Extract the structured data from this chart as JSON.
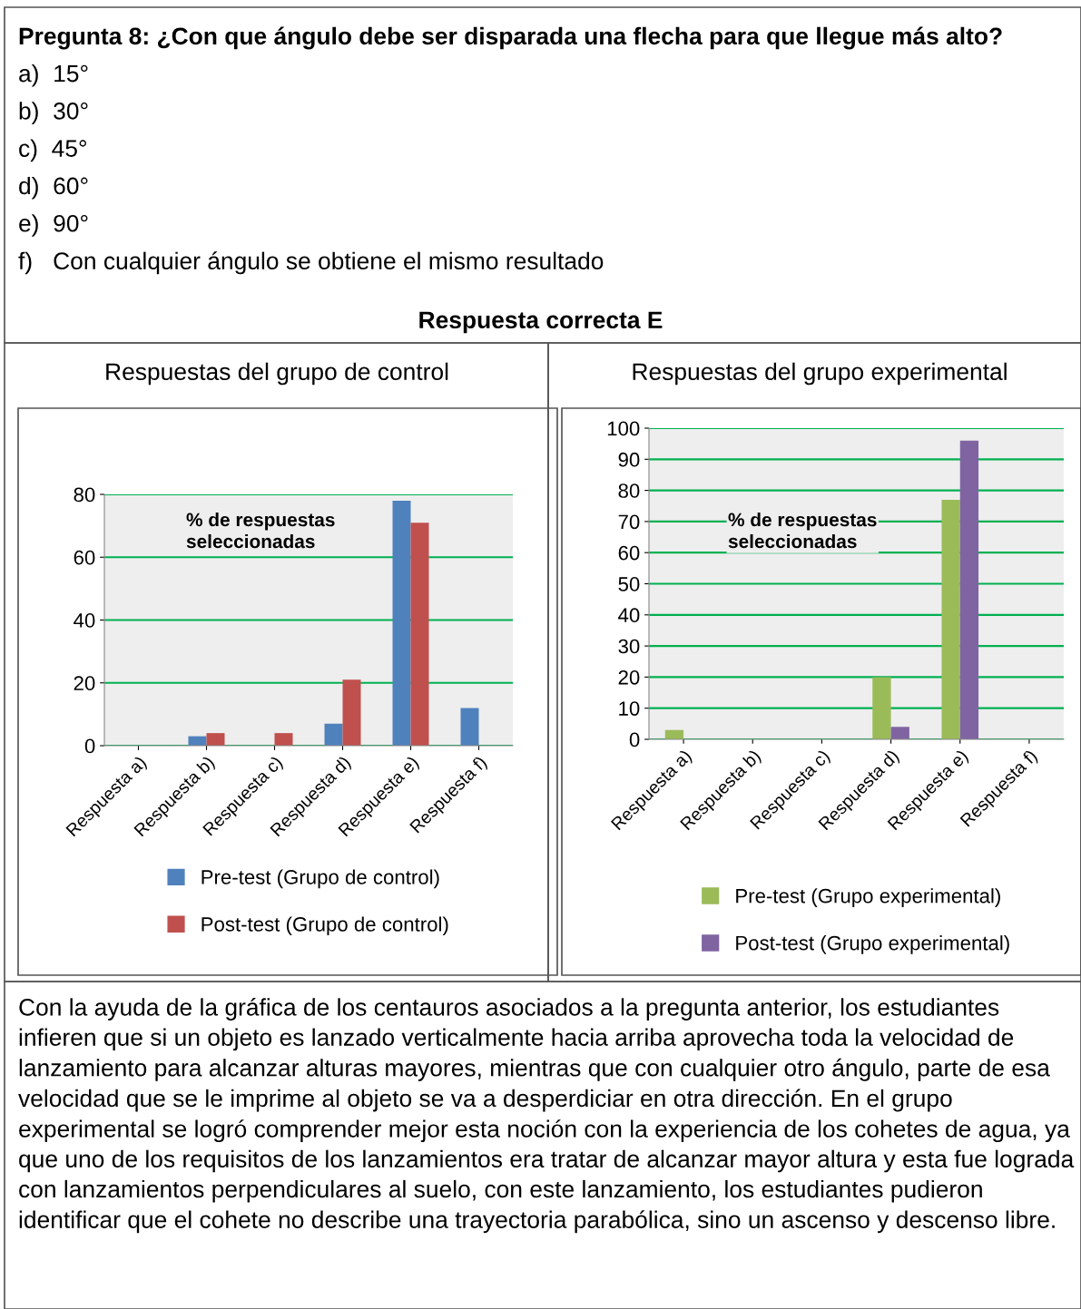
{
  "chart_data": [
    {
      "type": "bar",
      "title": "Respuestas del grupo de control",
      "categories": [
        "Respuesta a)",
        "Respuesta b)",
        "Respuesta c)",
        "Respuesta d)",
        "Respuesta e)",
        "Respuesta f)"
      ],
      "series": [
        {
          "name": "Pre-test (Grupo de control)",
          "color": "#4f81bd",
          "values": [
            0,
            3,
            0,
            7,
            78,
            12
          ]
        },
        {
          "name": "Post-test (Grupo de control)",
          "color": "#c0504d",
          "values": [
            0,
            4,
            4,
            21,
            71,
            0
          ]
        }
      ],
      "ylim": [
        0,
        80
      ],
      "yticks": [
        0,
        20,
        40,
        60,
        80
      ],
      "grid": "y",
      "legend": "bottom",
      "annotations": [
        "Pregunta 8: ¿Con que ángulo debe ser disparada una flecha para que llegue más alto?",
        "a)  15°",
        "b)  30°",
        "c)  45°",
        "d)  60°",
        "e)  90°",
        "f)   Con cualquier ángulo se obtiene el mismo resultado",
        "Respuesta correcta E",
        "% de respuestas\nseleccionadas"
      ]
    },
    {
      "type": "bar",
      "title": "Respuestas del grupo experimental",
      "categories": [
        "Respuesta a)",
        "Respuesta b)",
        "Respuesta c)",
        "Respuesta d)",
        "Respuesta e)",
        "Respuesta f)"
      ],
      "series": [
        {
          "name": "Pre-test (Grupo experimental)",
          "color": "#9bbb59",
          "values": [
            3,
            0,
            0,
            20,
            77,
            0
          ]
        },
        {
          "name": "Post-test (Grupo experimental)",
          "color": "#8064a2",
          "values": [
            0,
            0,
            0,
            4,
            96,
            0
          ]
        }
      ],
      "ylim": [
        0,
        100
      ],
      "yticks": [
        0,
        10,
        20,
        30,
        40,
        50,
        60,
        70,
        80,
        90,
        100
      ],
      "grid": "y",
      "legend": "bottom",
      "annotations": [
        "% de respuestas\nseleccionadas",
        "Con la ayuda de la gráfica de los centauros asociados a la pregunta anterior, los estudiantes infieren que si un objeto es lanzado verticalmente hacia arriba aprovecha toda la velocidad de lanzamiento para alcanzar alturas mayores, mientras que con cualquier otro ángulo, parte de esa velocidad que se le imprime al objeto se va a desperdiciar en otra dirección. En el grupo experimental se logró comprender mejor esta noción con la experiencia de los cohetes de agua, ya que uno de los requisitos de los lanzamientos era tratar de alcanzar mayor altura y esta fue lograda con lanzamientos perpendiculares al suelo, con este lanzamiento, los estudiantes pudieron identificar que el cohete no describe una trayectoria parabólica, sino un ascenso y descenso libre."
      ]
    }
  ]
}
